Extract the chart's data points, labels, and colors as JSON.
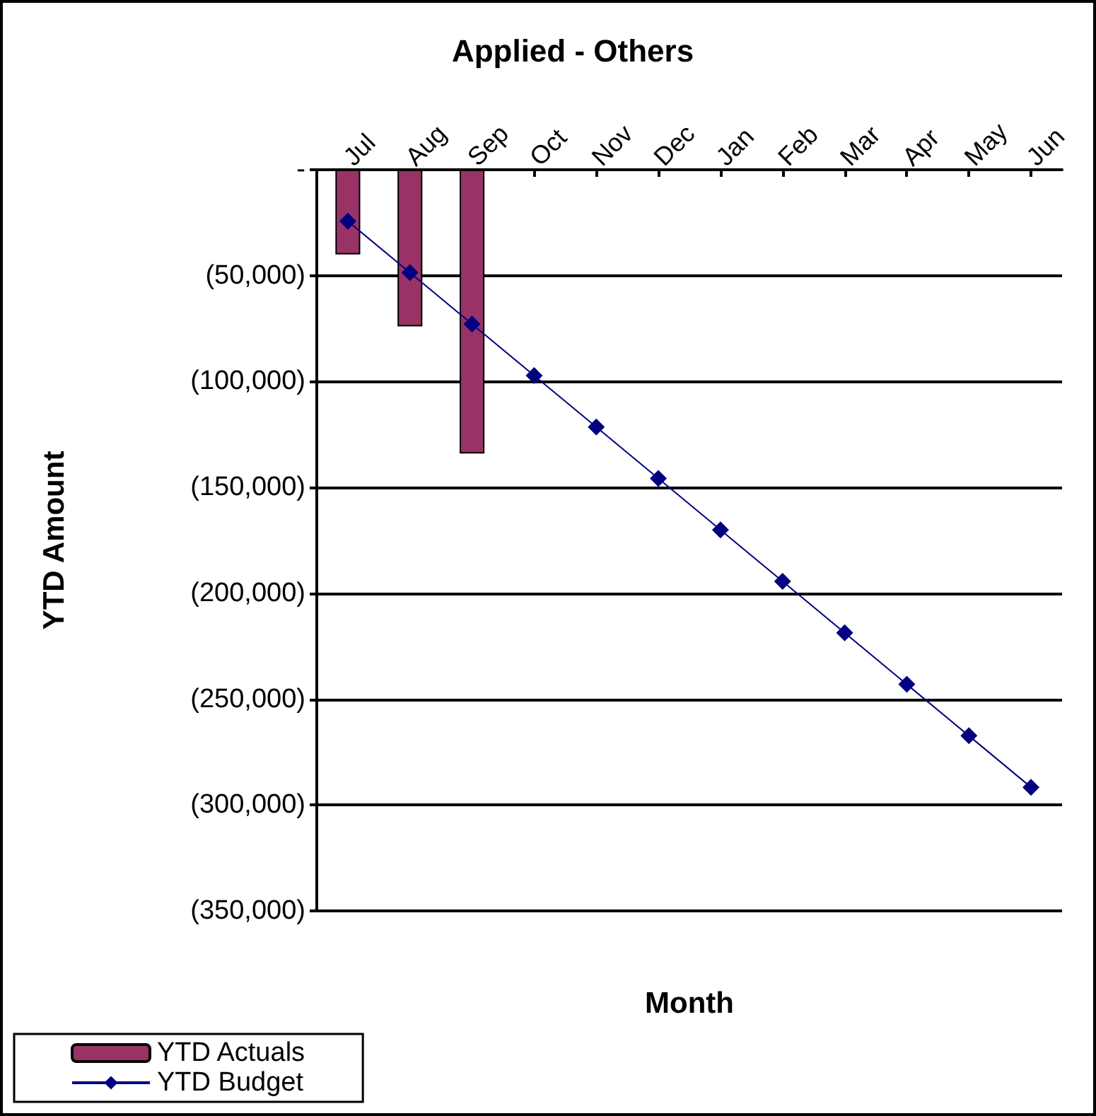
{
  "chart_data": {
    "type": "bar",
    "title": "Applied - Others",
    "xlabel": "Month",
    "ylabel": "YTD Amount",
    "categories": [
      "Jul",
      "Aug",
      "Sep",
      "Oct",
      "Nov",
      "Dec",
      "Jan",
      "Feb",
      "Mar",
      "Apr",
      "May",
      "Jun"
    ],
    "series": [
      {
        "name": "YTD Actuals",
        "color": "#993366",
        "values": [
          -40000,
          -74000,
          -134000,
          null,
          null,
          null,
          null,
          null,
          null,
          null,
          null,
          null
        ]
      },
      {
        "name": "YTD Budget",
        "type": "line",
        "color": "#000080",
        "marker": "diamond",
        "line_style": "solid",
        "values": [
          -24300,
          -48600,
          -72900,
          -97200,
          -121500,
          -145800,
          -170100,
          -194400,
          -218700,
          -243000,
          -267300,
          -291600
        ]
      }
    ],
    "ylim": [
      -350000,
      0
    ],
    "yticks": [
      {
        "value": 0,
        "label": "-"
      },
      {
        "value": -50000,
        "label": "(50,000)"
      },
      {
        "value": -100000,
        "label": "(100,000)"
      },
      {
        "value": -150000,
        "label": "(150,000)"
      },
      {
        "value": -200000,
        "label": "(200,000)"
      },
      {
        "value": -250000,
        "label": "(250,000)"
      },
      {
        "value": -300000,
        "label": "(300,000)"
      },
      {
        "value": -350000,
        "label": "(350,000)"
      }
    ],
    "grid": "y",
    "legend": "bottom left"
  }
}
